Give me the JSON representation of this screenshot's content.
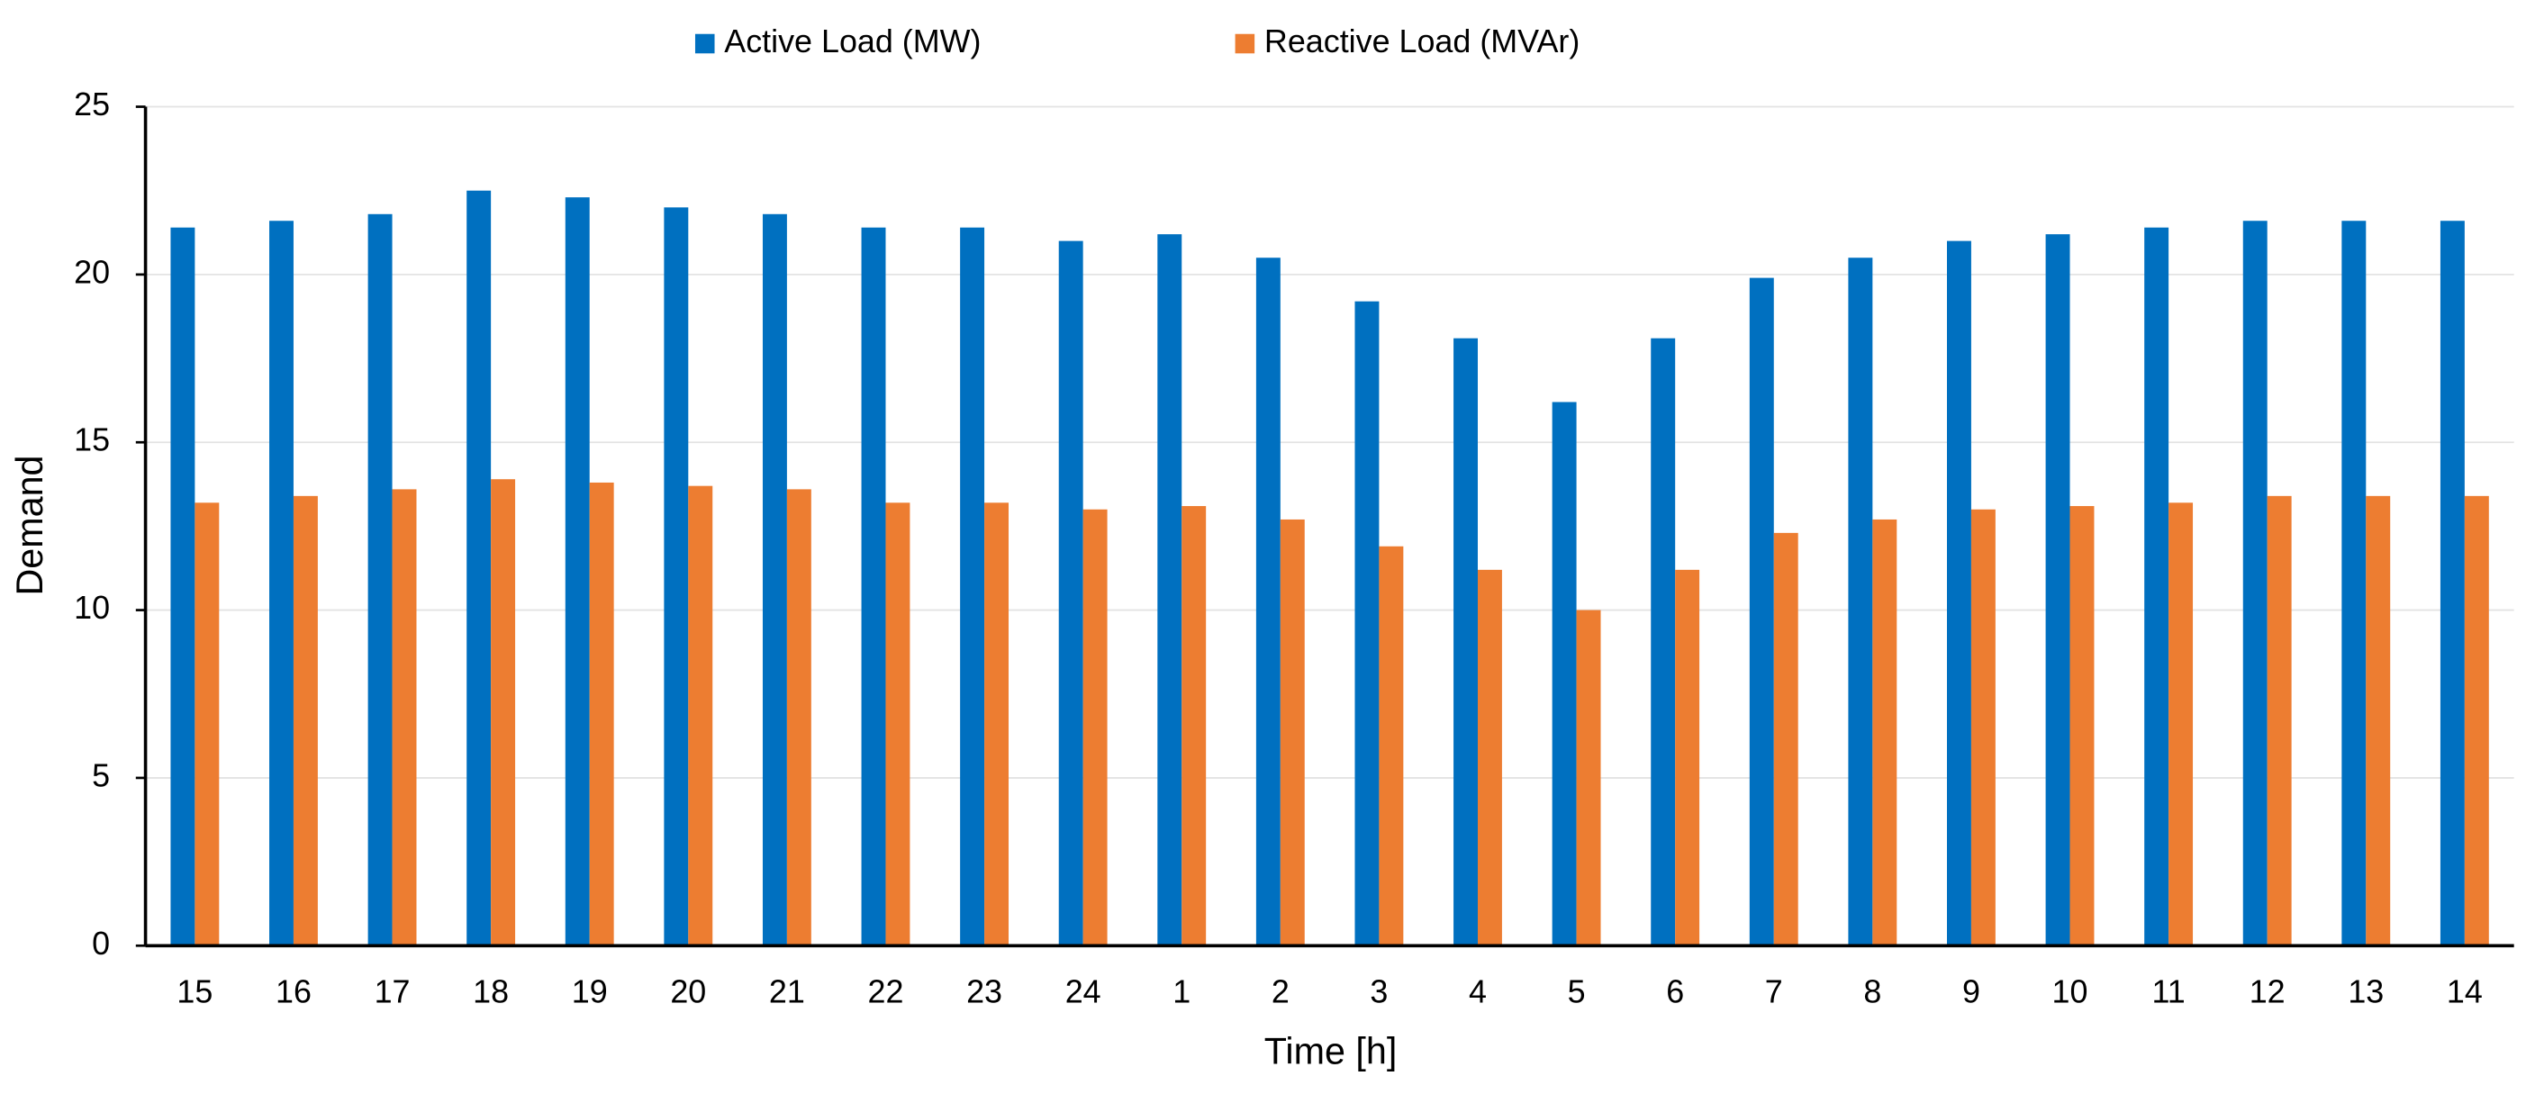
{
  "chart_data": {
    "type": "bar",
    "x_label": "Time [h]",
    "y_label": "Demand",
    "categories": [
      "15",
      "16",
      "17",
      "18",
      "19",
      "20",
      "21",
      "22",
      "23",
      "24",
      "1",
      "2",
      "3",
      "4",
      "5",
      "6",
      "7",
      "8",
      "9",
      "10",
      "11",
      "12",
      "13",
      "14"
    ],
    "series": [
      {
        "name": "Active Load (MW)",
        "color": "#0070c0",
        "values": [
          21.4,
          21.6,
          21.8,
          22.5,
          22.3,
          22.0,
          21.8,
          21.4,
          21.4,
          21.0,
          21.2,
          20.5,
          19.2,
          18.1,
          16.2,
          18.1,
          19.9,
          20.5,
          21.0,
          21.2,
          21.4,
          21.6,
          21.6,
          21.6
        ]
      },
      {
        "name": "Reactive Load (MVAr)",
        "color": "#ed7d31",
        "values": [
          13.2,
          13.4,
          13.6,
          13.9,
          13.8,
          13.7,
          13.6,
          13.2,
          13.2,
          13.0,
          13.1,
          12.7,
          11.9,
          11.2,
          10.0,
          11.2,
          12.3,
          12.7,
          13.0,
          13.1,
          13.2,
          13.4,
          13.4,
          13.4
        ]
      }
    ],
    "ylim": [
      0,
      25
    ],
    "yticks": [
      0,
      5,
      10,
      15,
      20,
      25
    ],
    "grid": true,
    "legend": "top"
  }
}
